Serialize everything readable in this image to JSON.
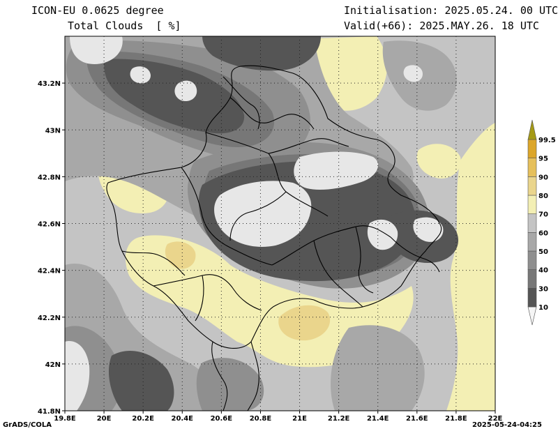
{
  "header": {
    "model": "ICON-EU 0.0625 degree",
    "field": "Total Clouds  [ %]",
    "init": "Initialisation: 2025.05.24. 00 UTC",
    "valid": "Valid(+66): 2025.MAY.26. 18 UTC"
  },
  "footer": {
    "credit": "GrADS/COLA",
    "timestamp": "2025-05-24-04:25"
  },
  "axes": {
    "lon_ticks": [
      "19.8E",
      "20E",
      "20.2E",
      "20.4E",
      "20.6E",
      "20.8E",
      "21E",
      "21.2E",
      "21.4E",
      "21.6E",
      "21.8E",
      "22E"
    ],
    "lat_ticks": [
      "41.8N",
      "42N",
      "42.2N",
      "42.4N",
      "42.6N",
      "42.8N",
      "43N",
      "43.2N"
    ],
    "lon_range": [
      19.8,
      22.0
    ],
    "lat_range": [
      41.8,
      43.4
    ]
  },
  "legend": {
    "labels": [
      "10",
      "30",
      "40",
      "50",
      "60",
      "70",
      "80",
      "90",
      "95",
      "99.5"
    ],
    "colors": [
      "#f5f5f5",
      "#555555",
      "#777777",
      "#8f8f8f",
      "#a8a8a8",
      "#c4c4c4",
      "#f3efb4",
      "#ead58c",
      "#e6c05b",
      "#dca62a",
      "#a59a16"
    ]
  },
  "palette": {
    "light": "#e7e7e7",
    "c70": "#c4c4c4",
    "c60": "#a8a8a8",
    "c50": "#8f8f8f",
    "c40": "#777777",
    "dark": "#555555",
    "yellow": "#f3efb4",
    "tan": "#ead58c"
  }
}
